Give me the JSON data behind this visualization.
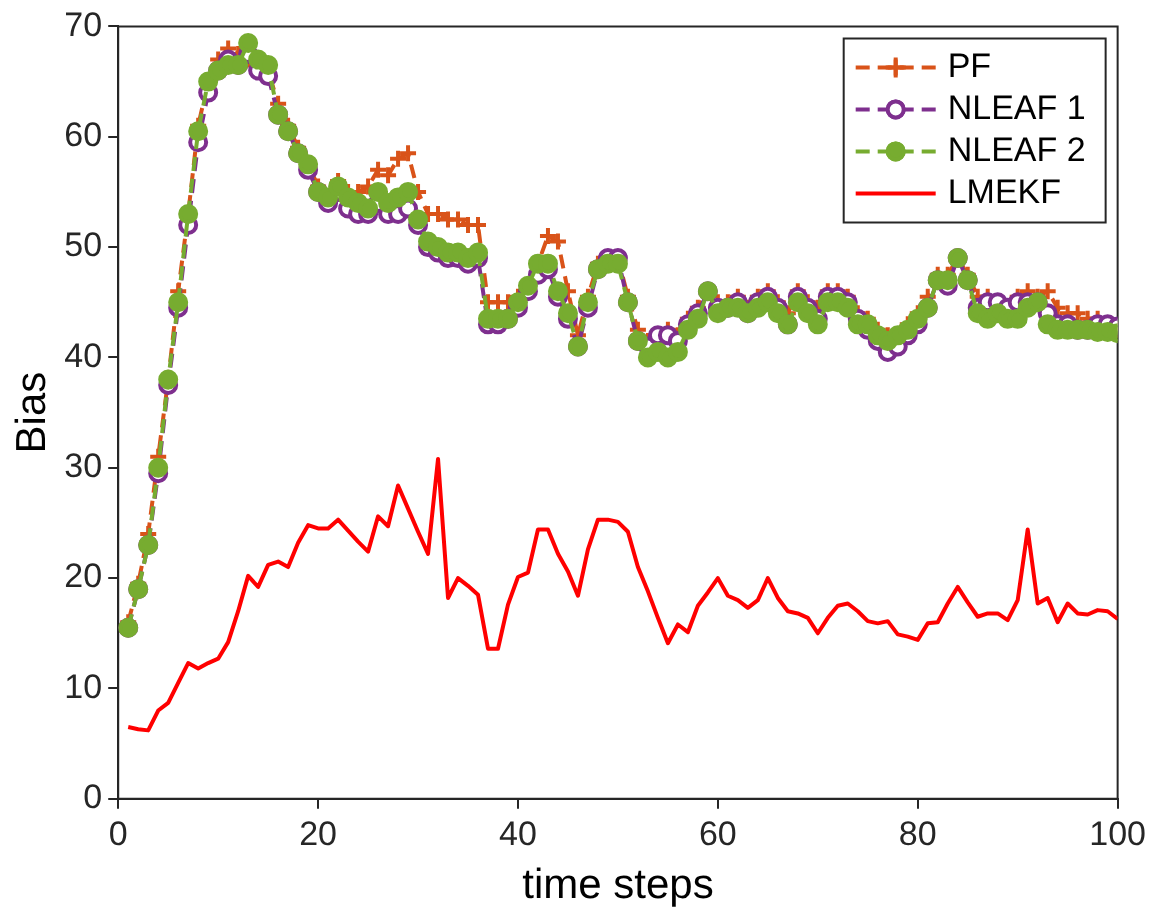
{
  "chart_data": {
    "type": "line",
    "xlabel": "time steps",
    "ylabel": "Bias",
    "xlim": [
      0,
      100
    ],
    "ylim": [
      0,
      70
    ],
    "xticks": [
      0,
      20,
      40,
      60,
      80,
      100
    ],
    "yticks": [
      0,
      10,
      20,
      30,
      40,
      50,
      60,
      70
    ],
    "grid": false,
    "legend": "top right",
    "x": [
      1,
      2,
      3,
      4,
      5,
      6,
      7,
      8,
      9,
      10,
      11,
      12,
      13,
      14,
      15,
      16,
      17,
      18,
      19,
      20,
      21,
      22,
      23,
      24,
      25,
      26,
      27,
      28,
      29,
      30,
      31,
      32,
      33,
      34,
      35,
      36,
      37,
      38,
      39,
      40,
      41,
      42,
      43,
      44,
      45,
      46,
      47,
      48,
      49,
      50,
      51,
      52,
      53,
      54,
      55,
      56,
      57,
      58,
      59,
      60,
      61,
      62,
      63,
      64,
      65,
      66,
      67,
      68,
      69,
      70,
      71,
      72,
      73,
      74,
      75,
      76,
      77,
      78,
      79,
      80,
      81,
      82,
      83,
      84,
      85,
      86,
      87,
      88,
      89,
      90,
      91,
      92,
      93,
      94,
      95,
      96,
      97,
      98,
      99,
      100
    ],
    "series": [
      {
        "name": "PF",
        "color": "#d95319",
        "marker": "cross",
        "line_style": "dashed",
        "values": [
          16,
          19.5,
          24,
          31,
          38,
          46,
          53,
          61,
          65,
          67,
          68,
          67.5,
          67,
          66.5,
          66,
          63,
          61,
          59,
          57.5,
          55.5,
          54.5,
          56,
          55,
          55,
          55.5,
          57,
          56.5,
          58,
          58.5,
          55,
          53,
          53,
          52.5,
          52.5,
          52,
          52,
          45,
          45,
          45,
          45.5,
          46.5,
          48.5,
          51,
          50.5,
          46,
          42,
          45.5,
          48.5,
          49,
          49,
          45.5,
          42.5,
          41.5,
          42,
          42.5,
          42,
          43.5,
          44.5,
          46,
          45,
          45,
          45.5,
          44.5,
          45.5,
          46,
          45,
          44,
          46,
          45,
          44.5,
          46,
          46,
          45.5,
          44,
          43.5,
          42.5,
          42,
          42,
          43,
          44,
          45.5,
          47.5,
          47.5,
          49,
          47.5,
          45.5,
          45.5,
          45,
          44.5,
          45.5,
          46,
          45.5,
          46,
          44.5,
          44,
          44,
          43.5,
          43.5,
          43,
          42.5
        ]
      },
      {
        "name": "NLEAF 1",
        "color": "#7e2f8e",
        "marker": "circle",
        "line_style": "dashed",
        "values": [
          15.5,
          19,
          23,
          29.5,
          37.5,
          44.5,
          52,
          59.5,
          64,
          66,
          67,
          66.5,
          67.5,
          66,
          65.5,
          62,
          60.5,
          58.5,
          57,
          55,
          54,
          55,
          53.5,
          53,
          53,
          54,
          53,
          53,
          53.5,
          52,
          50,
          49.5,
          49,
          49,
          48.5,
          49,
          43,
          43,
          43.5,
          44.5,
          46,
          47.5,
          48,
          45.5,
          43.5,
          41,
          44.5,
          48,
          49,
          49,
          45,
          41.5,
          41,
          42,
          42,
          41.5,
          43,
          44,
          46,
          44.5,
          44.5,
          45,
          44,
          45,
          45.5,
          44.5,
          43,
          45.5,
          44.5,
          43.5,
          45.5,
          45.5,
          45,
          43.5,
          42.5,
          41.5,
          40.5,
          41,
          42,
          43,
          44.5,
          47,
          46.5,
          49,
          47,
          44.5,
          45,
          45,
          44.5,
          45,
          45,
          45,
          44,
          43,
          43,
          42.5,
          42.5,
          43,
          43,
          42.8
        ]
      },
      {
        "name": "NLEAF 2",
        "color": "#77ac30",
        "marker": "circle",
        "line_style": "dashed",
        "values": [
          15.5,
          19,
          23,
          30,
          38,
          45,
          53,
          60.5,
          65,
          66,
          66.5,
          66.5,
          68.5,
          67,
          66.5,
          62,
          60.5,
          58.5,
          57.5,
          55,
          54.5,
          55.5,
          54.5,
          54,
          53.5,
          55,
          54,
          54.5,
          55,
          52.5,
          50.5,
          50,
          49.5,
          49.5,
          49,
          49.5,
          43.5,
          43.5,
          43.5,
          45,
          46.5,
          48.5,
          48.5,
          46,
          44,
          41,
          45,
          48,
          48.5,
          48.5,
          45,
          41.5,
          40,
          40.5,
          40,
          40.5,
          42.5,
          43.5,
          46,
          44,
          44.5,
          44.5,
          44,
          44.5,
          45,
          44,
          43,
          45,
          44,
          43,
          45,
          45,
          44.5,
          43,
          43,
          42,
          41.5,
          42,
          42.5,
          43.5,
          44.5,
          47,
          47,
          49,
          47,
          44,
          43.5,
          44,
          43.5,
          43.5,
          44.5,
          45,
          43,
          42.5,
          42.5,
          42.5,
          42.5,
          42.3,
          42.3,
          42.2
        ]
      },
      {
        "name": "LMEKF",
        "color": "#ff0000",
        "marker": "none",
        "line_style": "solid",
        "values": [
          6.5,
          6.3,
          6.2,
          8,
          8.7,
          10.5,
          12.3,
          11.8,
          12.3,
          12.7,
          14.2,
          17,
          20.2,
          19.2,
          21.2,
          21.5,
          21,
          23.2,
          24.8,
          24.5,
          24.5,
          25.3,
          24.3,
          23.3,
          22.4,
          25.6,
          24.7,
          28.4,
          26.3,
          24.2,
          22.2,
          30.8,
          18.2,
          20,
          19.3,
          18.5,
          13.6,
          13.6,
          17.6,
          20.1,
          20.5,
          24.4,
          24.4,
          22.2,
          20.6,
          18.4,
          22.6,
          25.3,
          25.3,
          25.1,
          24.2,
          21,
          18.8,
          16.4,
          14.1,
          15.8,
          15.1,
          17.5,
          18.7,
          20,
          18.4,
          18,
          17.3,
          18,
          20,
          18.2,
          17,
          16.8,
          16.4,
          15,
          16.4,
          17.5,
          17.7,
          17,
          16.1,
          15.9,
          16.1,
          14.9,
          14.7,
          14.4,
          15.9,
          16,
          17.7,
          19.2,
          17.8,
          16.5,
          16.8,
          16.8,
          16.2,
          18,
          24.4,
          17.7,
          18.2,
          16,
          17.7,
          16.8,
          16.7,
          17.1,
          17,
          16.3
        ]
      }
    ]
  }
}
